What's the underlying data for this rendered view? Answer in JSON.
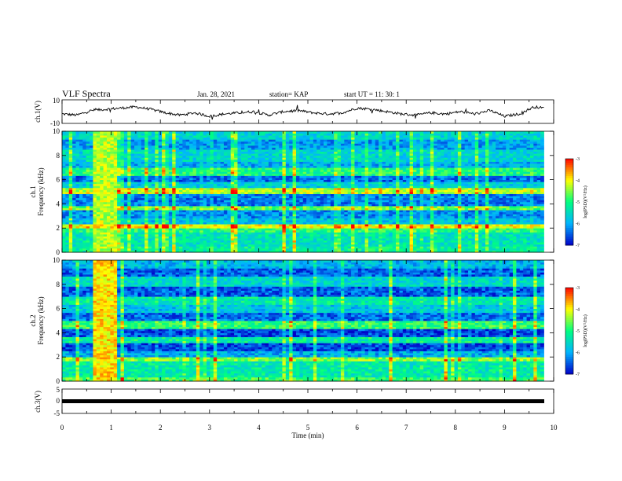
{
  "header": {
    "title": "VLF Spectra",
    "date": "Jan. 28, 2021",
    "station": "station= KAP",
    "start_ut": "start  UT =   11: 30: 1"
  },
  "colors": {
    "trace": "#000000",
    "spectrogram_scale": [
      "#0000c8",
      "#00b4ff",
      "#00ff80",
      "#ffff00",
      "#ff0000"
    ]
  },
  "chart_data": [
    {
      "type": "line",
      "name": "ch1-voltage",
      "ylabel": "ch.1(V)",
      "ylim": [
        -10,
        10
      ],
      "yticks": [
        "10",
        "-10"
      ],
      "xlim": [
        0,
        10
      ],
      "x": [
        0,
        0.3,
        0.6,
        0.9,
        1.2,
        1.5,
        1.8,
        2.1,
        2.4,
        2.7,
        3.0,
        3.3,
        3.6,
        3.9,
        4.2,
        4.5,
        4.8,
        5.1,
        5.4,
        5.7,
        6.0,
        6.3,
        6.6,
        6.9,
        7.2,
        7.5,
        7.8,
        8.1,
        8.4,
        8.7,
        9.0,
        9.3,
        9.6,
        9.8
      ],
      "values": [
        -2,
        -3,
        1,
        2,
        3,
        4,
        2,
        -1,
        -3,
        -1,
        -4,
        -2,
        -1,
        0,
        -3,
        0,
        1,
        -1,
        -2,
        -1,
        3,
        2,
        0,
        -2,
        -3,
        -1,
        -2,
        0,
        -2,
        1,
        -4,
        -2,
        4,
        3
      ]
    },
    {
      "type": "heatmap",
      "name": "ch1-spectrogram",
      "ylabel": "ch.1\nFrequency  (kHz)",
      "ylim": [
        0,
        10
      ],
      "yticks": [
        "0",
        "2",
        "4",
        "6",
        "8",
        "10"
      ],
      "xlim": [
        0,
        9.8
      ],
      "colorbar": {
        "label": "log(PSD)(V²/Hz)",
        "range": [
          -7,
          -3
        ],
        "ticks": [
          "-3",
          "-4",
          "-5",
          "-6",
          "-7"
        ]
      },
      "bands_khz": [
        {
          "f": [
            0.0,
            0.5
          ],
          "level": -5.2
        },
        {
          "f": [
            0.5,
            1.6
          ],
          "level": -5.4
        },
        {
          "f": [
            1.6,
            2.0
          ],
          "level": -5.0
        },
        {
          "f": [
            2.0,
            2.4
          ],
          "level": -4.0
        },
        {
          "f": [
            2.4,
            2.9
          ],
          "level": -5.8
        },
        {
          "f": [
            2.9,
            3.5
          ],
          "level": -6.2
        },
        {
          "f": [
            3.5,
            3.9
          ],
          "level": -4.6
        },
        {
          "f": [
            3.9,
            4.8
          ],
          "level": -6.3
        },
        {
          "f": [
            4.8,
            5.3
          ],
          "level": -4.3
        },
        {
          "f": [
            5.3,
            5.8
          ],
          "level": -5.7
        },
        {
          "f": [
            5.8,
            6.3
          ],
          "level": -6.4
        },
        {
          "f": [
            6.3,
            7.0
          ],
          "level": -5.0
        },
        {
          "f": [
            7.0,
            7.5
          ],
          "level": -6.0
        },
        {
          "f": [
            7.5,
            8.5
          ],
          "level": -5.6
        },
        {
          "f": [
            8.5,
            9.3
          ],
          "level": -6.1
        },
        {
          "f": [
            9.3,
            10.0
          ],
          "level": -5.6
        }
      ],
      "burst_interval_min": [
        0.6,
        1.15
      ],
      "burst_level": -4.3
    },
    {
      "type": "heatmap",
      "name": "ch2-spectrogram",
      "ylabel": "ch.2\nFrequency  (kHz)",
      "ylim": [
        0,
        10
      ],
      "yticks": [
        "0",
        "2",
        "4",
        "6",
        "8",
        "10"
      ],
      "xlim": [
        0,
        9.8
      ],
      "colorbar": {
        "label": "log(PSD)(V²/Hz)",
        "range": [
          -7,
          -3
        ],
        "ticks": [
          "-3",
          "-4",
          "-5",
          "-6",
          "-7"
        ]
      },
      "bands_khz": [
        {
          "f": [
            0.0,
            0.4
          ],
          "level": -4.8
        },
        {
          "f": [
            0.4,
            1.6
          ],
          "level": -5.3
        },
        {
          "f": [
            1.6,
            2.0
          ],
          "level": -4.5
        },
        {
          "f": [
            2.0,
            2.5
          ],
          "level": -6.0
        },
        {
          "f": [
            2.5,
            3.1
          ],
          "level": -6.6
        },
        {
          "f": [
            3.1,
            3.6
          ],
          "level": -5.2
        },
        {
          "f": [
            3.6,
            4.3
          ],
          "level": -6.6
        },
        {
          "f": [
            4.3,
            5.0
          ],
          "level": -4.9
        },
        {
          "f": [
            5.0,
            5.7
          ],
          "level": -6.4
        },
        {
          "f": [
            5.7,
            6.4
          ],
          "level": -5.8
        },
        {
          "f": [
            6.4,
            7.0
          ],
          "level": -5.3
        },
        {
          "f": [
            7.0,
            7.8
          ],
          "level": -6.5
        },
        {
          "f": [
            7.8,
            8.6
          ],
          "level": -5.6
        },
        {
          "f": [
            8.6,
            9.4
          ],
          "level": -6.5
        },
        {
          "f": [
            9.4,
            10.0
          ],
          "level": -5.9
        }
      ],
      "burst_interval_min": [
        0.6,
        1.15
      ],
      "burst_level": -3.9
    },
    {
      "type": "line",
      "name": "ch3-voltage",
      "ylabel": "ch.3(V)",
      "ylim": [
        -5,
        5
      ],
      "yticks": [
        "5",
        "0",
        "-5"
      ],
      "xlim": [
        0,
        10
      ],
      "xlabel": "Time  (min)",
      "xticks": [
        "0",
        "1",
        "2",
        "3",
        "4",
        "5",
        "6",
        "7",
        "8",
        "9",
        "10"
      ],
      "x": [
        0,
        9.8
      ],
      "values": [
        0,
        0
      ]
    }
  ]
}
